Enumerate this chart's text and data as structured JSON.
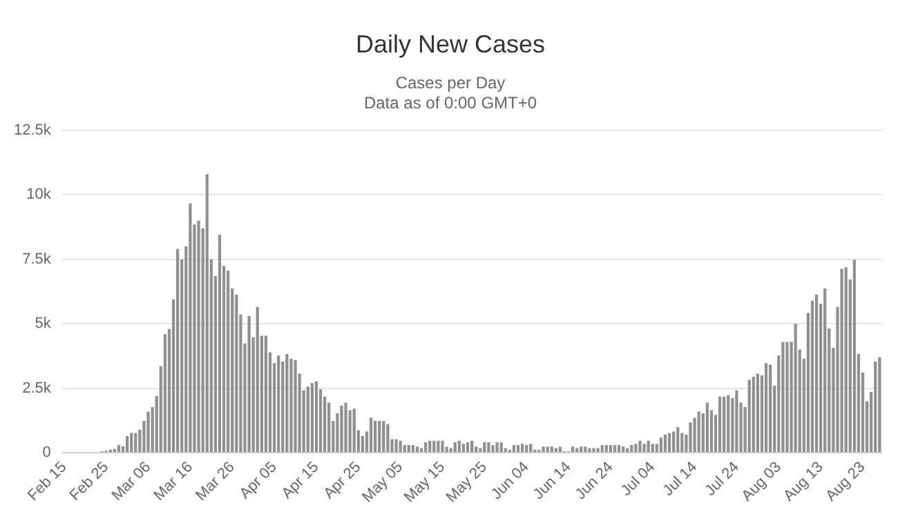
{
  "chart_data": {
    "type": "bar",
    "title": "Daily New Cases",
    "subtitle": "Cases per Day\nData as of 0:00 GMT+0",
    "categories": [
      "Feb 15",
      null,
      null,
      null,
      null,
      null,
      null,
      null,
      null,
      null,
      "Feb 25",
      null,
      null,
      null,
      null,
      null,
      null,
      null,
      null,
      null,
      "Mar 06",
      null,
      null,
      null,
      null,
      null,
      null,
      null,
      null,
      null,
      "Mar 16",
      null,
      null,
      null,
      null,
      null,
      null,
      null,
      null,
      null,
      "Mar 26",
      null,
      null,
      null,
      null,
      null,
      null,
      null,
      null,
      null,
      "Apr 05",
      null,
      null,
      null,
      null,
      null,
      null,
      null,
      null,
      null,
      "Apr 15",
      null,
      null,
      null,
      null,
      null,
      null,
      null,
      null,
      null,
      "Apr 25",
      null,
      null,
      null,
      null,
      null,
      null,
      null,
      null,
      null,
      "May 05",
      null,
      null,
      null,
      null,
      null,
      null,
      null,
      null,
      null,
      "May 15",
      null,
      null,
      null,
      null,
      null,
      null,
      null,
      null,
      null,
      "May 25",
      null,
      null,
      null,
      null,
      null,
      null,
      null,
      null,
      null,
      "Jun 04",
      null,
      null,
      null,
      null,
      null,
      null,
      null,
      null,
      null,
      "Jun 14",
      null,
      null,
      null,
      null,
      null,
      null,
      null,
      null,
      null,
      "Jun 24",
      null,
      null,
      null,
      null,
      null,
      null,
      null,
      null,
      null,
      "Jul 04",
      null,
      null,
      null,
      null,
      null,
      null,
      null,
      null,
      null,
      "Jul 14",
      null,
      null,
      null,
      null,
      null,
      null,
      null,
      null,
      null,
      "Jul 24",
      null,
      null,
      null,
      null,
      null,
      null,
      null,
      null,
      null,
      "Aug 03",
      null,
      null,
      null,
      null,
      null,
      null,
      null,
      null,
      null,
      "Aug 13",
      null,
      null,
      null,
      null,
      null,
      null,
      null,
      null,
      null,
      "Aug 23",
      null,
      null,
      null,
      null
    ],
    "values": [
      0,
      0,
      0,
      0,
      0,
      0,
      0,
      0,
      0,
      60,
      80,
      120,
      150,
      300,
      250,
      650,
      770,
      770,
      900,
      1240,
      1600,
      1770,
      2200,
      3360,
      4600,
      4800,
      5950,
      7900,
      7500,
      8000,
      9670,
      8850,
      9000,
      8700,
      10800,
      7500,
      6850,
      8450,
      7250,
      7070,
      6370,
      6130,
      5360,
      4240,
      5300,
      4480,
      5660,
      4540,
      4540,
      3900,
      3480,
      3770,
      3540,
      3830,
      3650,
      3600,
      3070,
      2420,
      2570,
      2700,
      2770,
      2470,
      2180,
      1950,
      1240,
      1530,
      1830,
      1950,
      1650,
      1710,
      880,
      650,
      830,
      1360,
      1240,
      1240,
      1240,
      1120,
      530,
      530,
      470,
      300,
      300,
      300,
      240,
      180,
      410,
      470,
      470,
      470,
      470,
      240,
      180,
      410,
      470,
      350,
      410,
      470,
      240,
      180,
      410,
      410,
      300,
      410,
      410,
      180,
      120,
      300,
      300,
      350,
      300,
      350,
      120,
      120,
      240,
      240,
      240,
      180,
      240,
      60,
      60,
      240,
      180,
      240,
      240,
      180,
      180,
      180,
      300,
      300,
      300,
      300,
      300,
      240,
      180,
      300,
      350,
      470,
      350,
      470,
      350,
      350,
      590,
      710,
      770,
      830,
      1000,
      770,
      710,
      1180,
      1360,
      1600,
      1530,
      1950,
      1650,
      1470,
      2180,
      2180,
      2240,
      2120,
      2420,
      1950,
      1770,
      2830,
      2950,
      3070,
      3000,
      3480,
      3420,
      2600,
      3770,
      4300,
      4300,
      4300,
      5000,
      4000,
      3650,
      5420,
      5900,
      6130,
      5780,
      6370,
      4830,
      4070,
      5660,
      7130,
      7190,
      6720,
      7480,
      3830,
      3120,
      2000,
      2360,
      3540,
      3710
    ],
    "color": "#909090",
    "ylim": [
      0,
      12500
    ],
    "yticks": [
      0,
      {
        "value": 2500,
        "label": "2.5k"
      },
      {
        "value": 5000,
        "label": "5k"
      },
      {
        "value": 7500,
        "label": "7.5k"
      },
      {
        "value": 10000,
        "label": "10k"
      },
      {
        "value": 12500,
        "label": "12.5k"
      }
    ],
    "grid": "y"
  }
}
